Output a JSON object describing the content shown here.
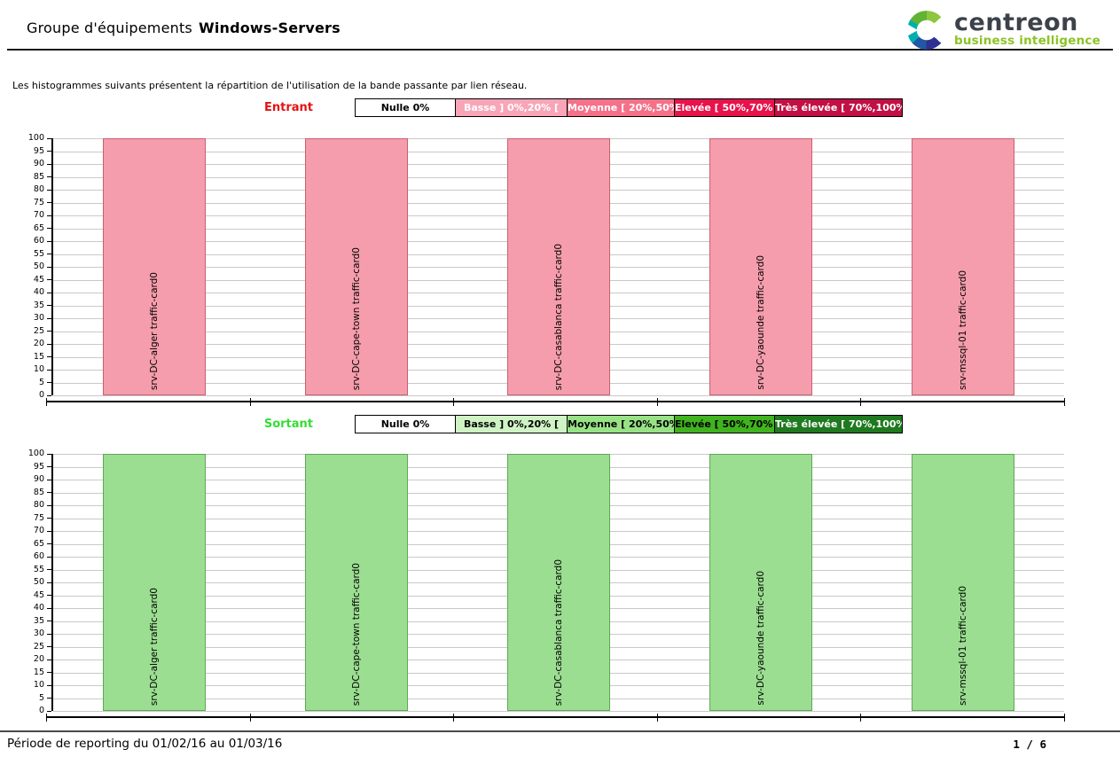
{
  "header": {
    "title_prefix": "Groupe d'équipements",
    "title_bold": "Windows-Servers",
    "logo": {
      "text": "centreon",
      "subtitle": "business intelligence",
      "text_color": "#3c424a",
      "subtitle_color": "#8cc326"
    }
  },
  "intro_text": "Les histogrammes suivants présentent la répartition de l'utilisation de la bande passante par lien réseau.",
  "sections": [
    {
      "id": "entrant",
      "label": "Entrant",
      "label_color": "#e51212",
      "legend": [
        {
          "label": "Nulle 0%",
          "bg": "#ffffff",
          "text": "#000000"
        },
        {
          "label": "Basse ] 0%,20% [",
          "bg": "#f8a5b8",
          "text": "#ffffff"
        },
        {
          "label": "Moyenne [ 20%,50% [",
          "bg": "#f57189",
          "text": "#ffffff"
        },
        {
          "label": "Elevée [ 50%,70% [",
          "bg": "#e7134b",
          "text": "#ffffff"
        },
        {
          "label": "Très élevée [ 70%,100% ]",
          "bg": "#c21045",
          "text": "#ffffff"
        }
      ]
    },
    {
      "id": "sortant",
      "label": "Sortant",
      "label_color": "#33dd33",
      "legend": [
        {
          "label": "Nulle 0%",
          "bg": "#ffffff",
          "text": "#000000"
        },
        {
          "label": "Basse ] 0%,20% [",
          "bg": "#cff3c5",
          "text": "#000000"
        },
        {
          "label": "Moyenne [ 20%,50% [",
          "bg": "#98e286",
          "text": "#000000"
        },
        {
          "label": "Elevée [ 50%,70% [",
          "bg": "#40b31f",
          "text": "#000000"
        },
        {
          "label": "Très élevée [ 70%,100% ]",
          "bg": "#1f7a1f",
          "text": "#ffffff"
        }
      ]
    }
  ],
  "chart_data": [
    {
      "type": "bar",
      "title": "Entrant",
      "categories": [
        "srv-DC-alger traffic-card0",
        "srv-DC-cape-town traffic-card0",
        "srv-DC-casablanca traffic-card0",
        "srv-DC-yaounde traffic-card0",
        "srv-mssql-01 traffic-card0"
      ],
      "values": [
        100,
        100,
        100,
        100,
        100
      ],
      "ylim": [
        0,
        100
      ],
      "ytick_step": 5,
      "grid": true,
      "legend_position": "top",
      "bar_color": "#f59dac",
      "bar_border": "#c9606e"
    },
    {
      "type": "bar",
      "title": "Sortant",
      "categories": [
        "srv-DC-alger traffic-card0",
        "srv-DC-cape-town traffic-card0",
        "srv-DC-casablanca traffic-card0",
        "srv-DC-yaounde traffic-card0",
        "srv-mssql-01 traffic-card0"
      ],
      "values": [
        100,
        100,
        100,
        100,
        100
      ],
      "ylim": [
        0,
        100
      ],
      "ytick_step": 5,
      "grid": true,
      "legend_position": "top",
      "bar_color": "#9bde91",
      "bar_border": "#5fa855"
    }
  ],
  "footer": {
    "period": "Période de reporting du 01/02/16 au 01/03/16",
    "page": "1 / 6"
  }
}
